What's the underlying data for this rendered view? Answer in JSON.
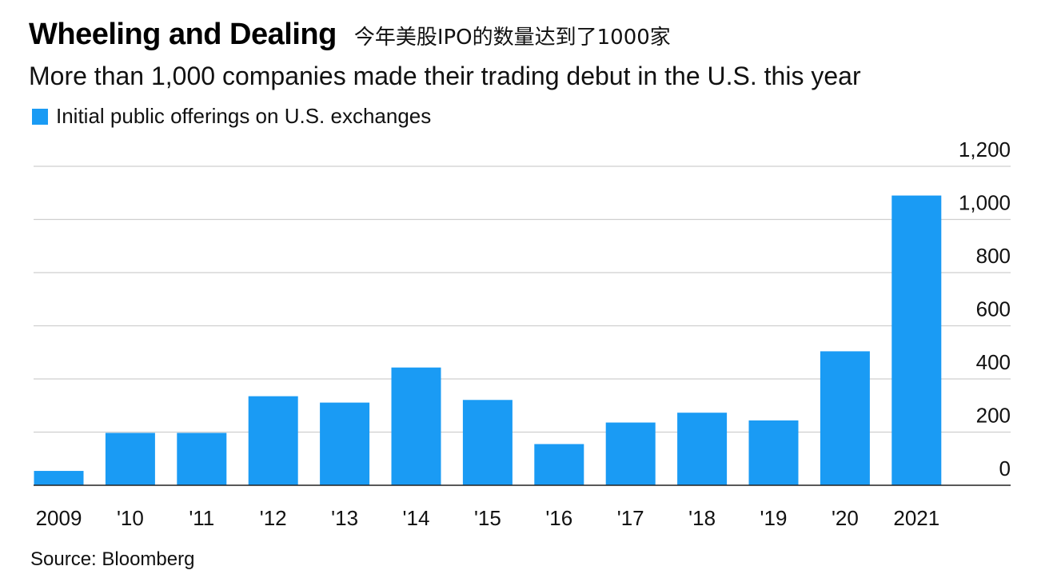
{
  "header": {
    "title": "Wheeling and Dealing",
    "title_cn": "今年美股IPO的数量达到了1000家",
    "subtitle": "More than 1,000 companies made their trading debut in the U.S. this year"
  },
  "footer": {
    "source": "Source: Bloomberg"
  },
  "colors": {
    "bar": "#1a9bf4",
    "grid": "#cfcfcf",
    "axis": "#222222"
  },
  "chart_data": {
    "type": "bar",
    "categories": [
      "2009",
      "'10",
      "'11",
      "'12",
      "'13",
      "'14",
      "'15",
      "'16",
      "'17",
      "'18",
      "'19",
      "'20",
      "2021"
    ],
    "series": [
      {
        "name": "Initial public offerings on U.S. exchanges",
        "values": [
          54,
          197,
          197,
          335,
          311,
          443,
          321,
          155,
          236,
          273,
          244,
          504,
          1090
        ]
      }
    ],
    "ylim": [
      0,
      1200
    ],
    "yticks": [
      0,
      200,
      400,
      600,
      800,
      1000,
      1200
    ],
    "ytick_labels": [
      "0",
      "200",
      "400",
      "600",
      "800",
      "1,000",
      "1,200"
    ],
    "y_axis_side": "right",
    "grid": true,
    "legend": "top-left"
  }
}
